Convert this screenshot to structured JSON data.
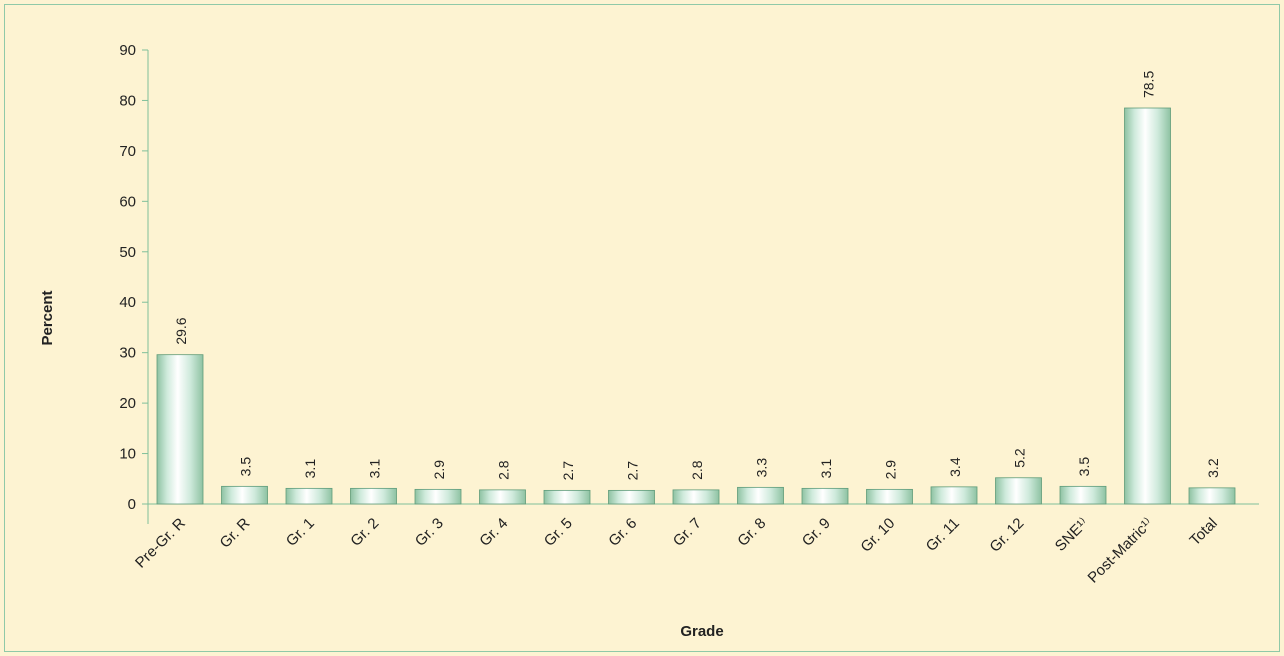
{
  "chart_data": {
    "type": "bar",
    "title": "",
    "xlabel": "Grade",
    "ylabel": "Percent",
    "ylim": [
      0,
      90
    ],
    "yticks": [
      0,
      10,
      20,
      30,
      40,
      50,
      60,
      70,
      80,
      90
    ],
    "grid": false,
    "categories": [
      "Pre-Gr. R",
      "Gr. R",
      "Gr. 1",
      "Gr. 2",
      "Gr. 3",
      "Gr. 4",
      "Gr. 5",
      "Gr. 6",
      "Gr. 7",
      "Gr. 8",
      "Gr. 9",
      "Gr. 10",
      "Gr. 11",
      "Gr. 12",
      "SNE¹⁾",
      "Post-Matric¹⁾",
      "Total"
    ],
    "values": [
      29.6,
      3.5,
      3.1,
      3.1,
      2.9,
      2.8,
      2.7,
      2.7,
      2.8,
      3.3,
      3.1,
      2.9,
      3.4,
      5.2,
      3.5,
      78.5,
      3.2
    ],
    "value_labels": [
      "29.6",
      "3.5",
      "3.1",
      "3.1",
      "2.9",
      "2.8",
      "2.7",
      "2.7",
      "2.8",
      "3.3",
      "3.1",
      "2.9",
      "3.4",
      "5.2",
      "3.5",
      "78.5",
      "3.2"
    ],
    "colors": {
      "background": "#fdf3d2",
      "frame": "#8fc9a8",
      "bar_light": "#ffffff",
      "bar_mid": "#cfeadc",
      "bar_dark": "#8ec2a2",
      "bar_edge": "#5f9c7a",
      "axis": "#7fbf9a"
    }
  }
}
